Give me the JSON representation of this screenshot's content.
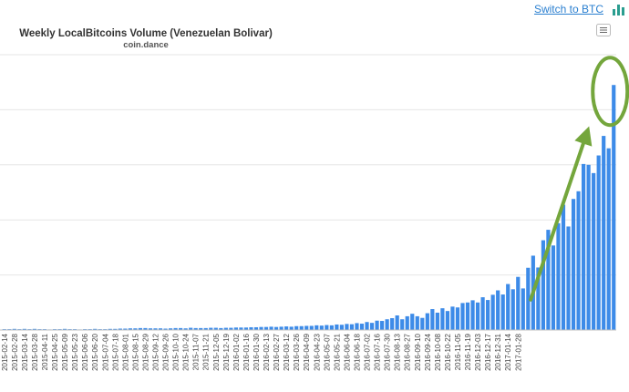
{
  "switch_label": "Switch to BTC",
  "colors": {
    "bar": "#3d8be8",
    "grid": "#e6e6e6",
    "annotation": "#74a63c",
    "link": "#2a7fd0"
  },
  "chart_data": {
    "type": "bar",
    "title": "Weekly LocalBitcoins Volume (Venezuelan Bolivar)",
    "subtitle": "coin.dance",
    "xlabel": "",
    "ylabel": "",
    "y_tick_labels_shown": false,
    "grid": true,
    "legend": "none",
    "ylim": [
      0,
      100
    ],
    "y_unit_note": "relative scale (0-100); no y-axis labels visible",
    "x_tick_labels": [
      "2015-02-14",
      "2015-02-28",
      "2015-03-14",
      "2015-03-28",
      "2015-04-11",
      "2015-04-25",
      "2015-05-09",
      "2015-05-23",
      "2015-06-06",
      "2015-06-20",
      "2015-07-04",
      "2015-07-18",
      "2015-08-01",
      "2015-08-15",
      "2015-08-29",
      "2015-09-12",
      "2015-09-26",
      "2015-10-10",
      "2015-10-24",
      "2015-11-07",
      "2015-11-21",
      "2015-12-05",
      "2015-12-19",
      "2016-01-02",
      "2016-01-16",
      "2016-01-30",
      "2016-02-13",
      "2016-02-27",
      "2016-03-12",
      "2016-03-26",
      "2016-04-09",
      "2016-04-23",
      "2016-05-07",
      "2016-05-21",
      "2016-06-04",
      "2016-06-18",
      "2016-07-02",
      "2016-07-16",
      "2016-07-30",
      "2016-08-13",
      "2016-08-27",
      "2016-09-10",
      "2016-09-24",
      "2016-10-08",
      "2016-10-22",
      "2016-11-05",
      "2016-11-19",
      "2016-12-03",
      "2016-12-17",
      "2016-12-31",
      "2017-01-14",
      "2017-01-28"
    ],
    "values": [
      0.3,
      0.3,
      0.4,
      0.3,
      0.4,
      0.3,
      0.4,
      0.3,
      0.3,
      0.2,
      0.3,
      0.3,
      0.4,
      0.3,
      0.3,
      0.2,
      0.3,
      0.3,
      0.4,
      0.3,
      0.3,
      0.4,
      0.4,
      0.5,
      0.5,
      0.6,
      0.6,
      0.7,
      0.7,
      0.6,
      0.6,
      0.6,
      0.5,
      0.6,
      0.7,
      0.7,
      0.6,
      0.8,
      0.7,
      0.7,
      0.7,
      0.8,
      0.8,
      0.7,
      0.8,
      0.8,
      0.9,
      0.9,
      0.9,
      1.0,
      1.0,
      1.1,
      1.1,
      1.2,
      1.1,
      1.2,
      1.3,
      1.2,
      1.4,
      1.4,
      1.5,
      1.5,
      1.7,
      1.6,
      1.8,
      1.7,
      2.0,
      1.9,
      2.2,
      2.1,
      2.5,
      2.3,
      2.9,
      2.6,
      3.4,
      3.3,
      3.9,
      4.3,
      5.3,
      3.9,
      5.0,
      5.9,
      5.0,
      4.4,
      6.1,
      7.6,
      6.3,
      7.9,
      6.9,
      8.5,
      8.2,
      9.8,
      10.0,
      10.8,
      10.0,
      11.9,
      10.9,
      12.8,
      14.4,
      12.9,
      16.7,
      14.8,
      19.3,
      15.1,
      22.6,
      27.0,
      22.7,
      32.6,
      36.4,
      30.7,
      38.8,
      45.5,
      37.6,
      47.6,
      50.4,
      60.3,
      60.0,
      57.0,
      63.4,
      70.5,
      66.0,
      89.0
    ]
  }
}
